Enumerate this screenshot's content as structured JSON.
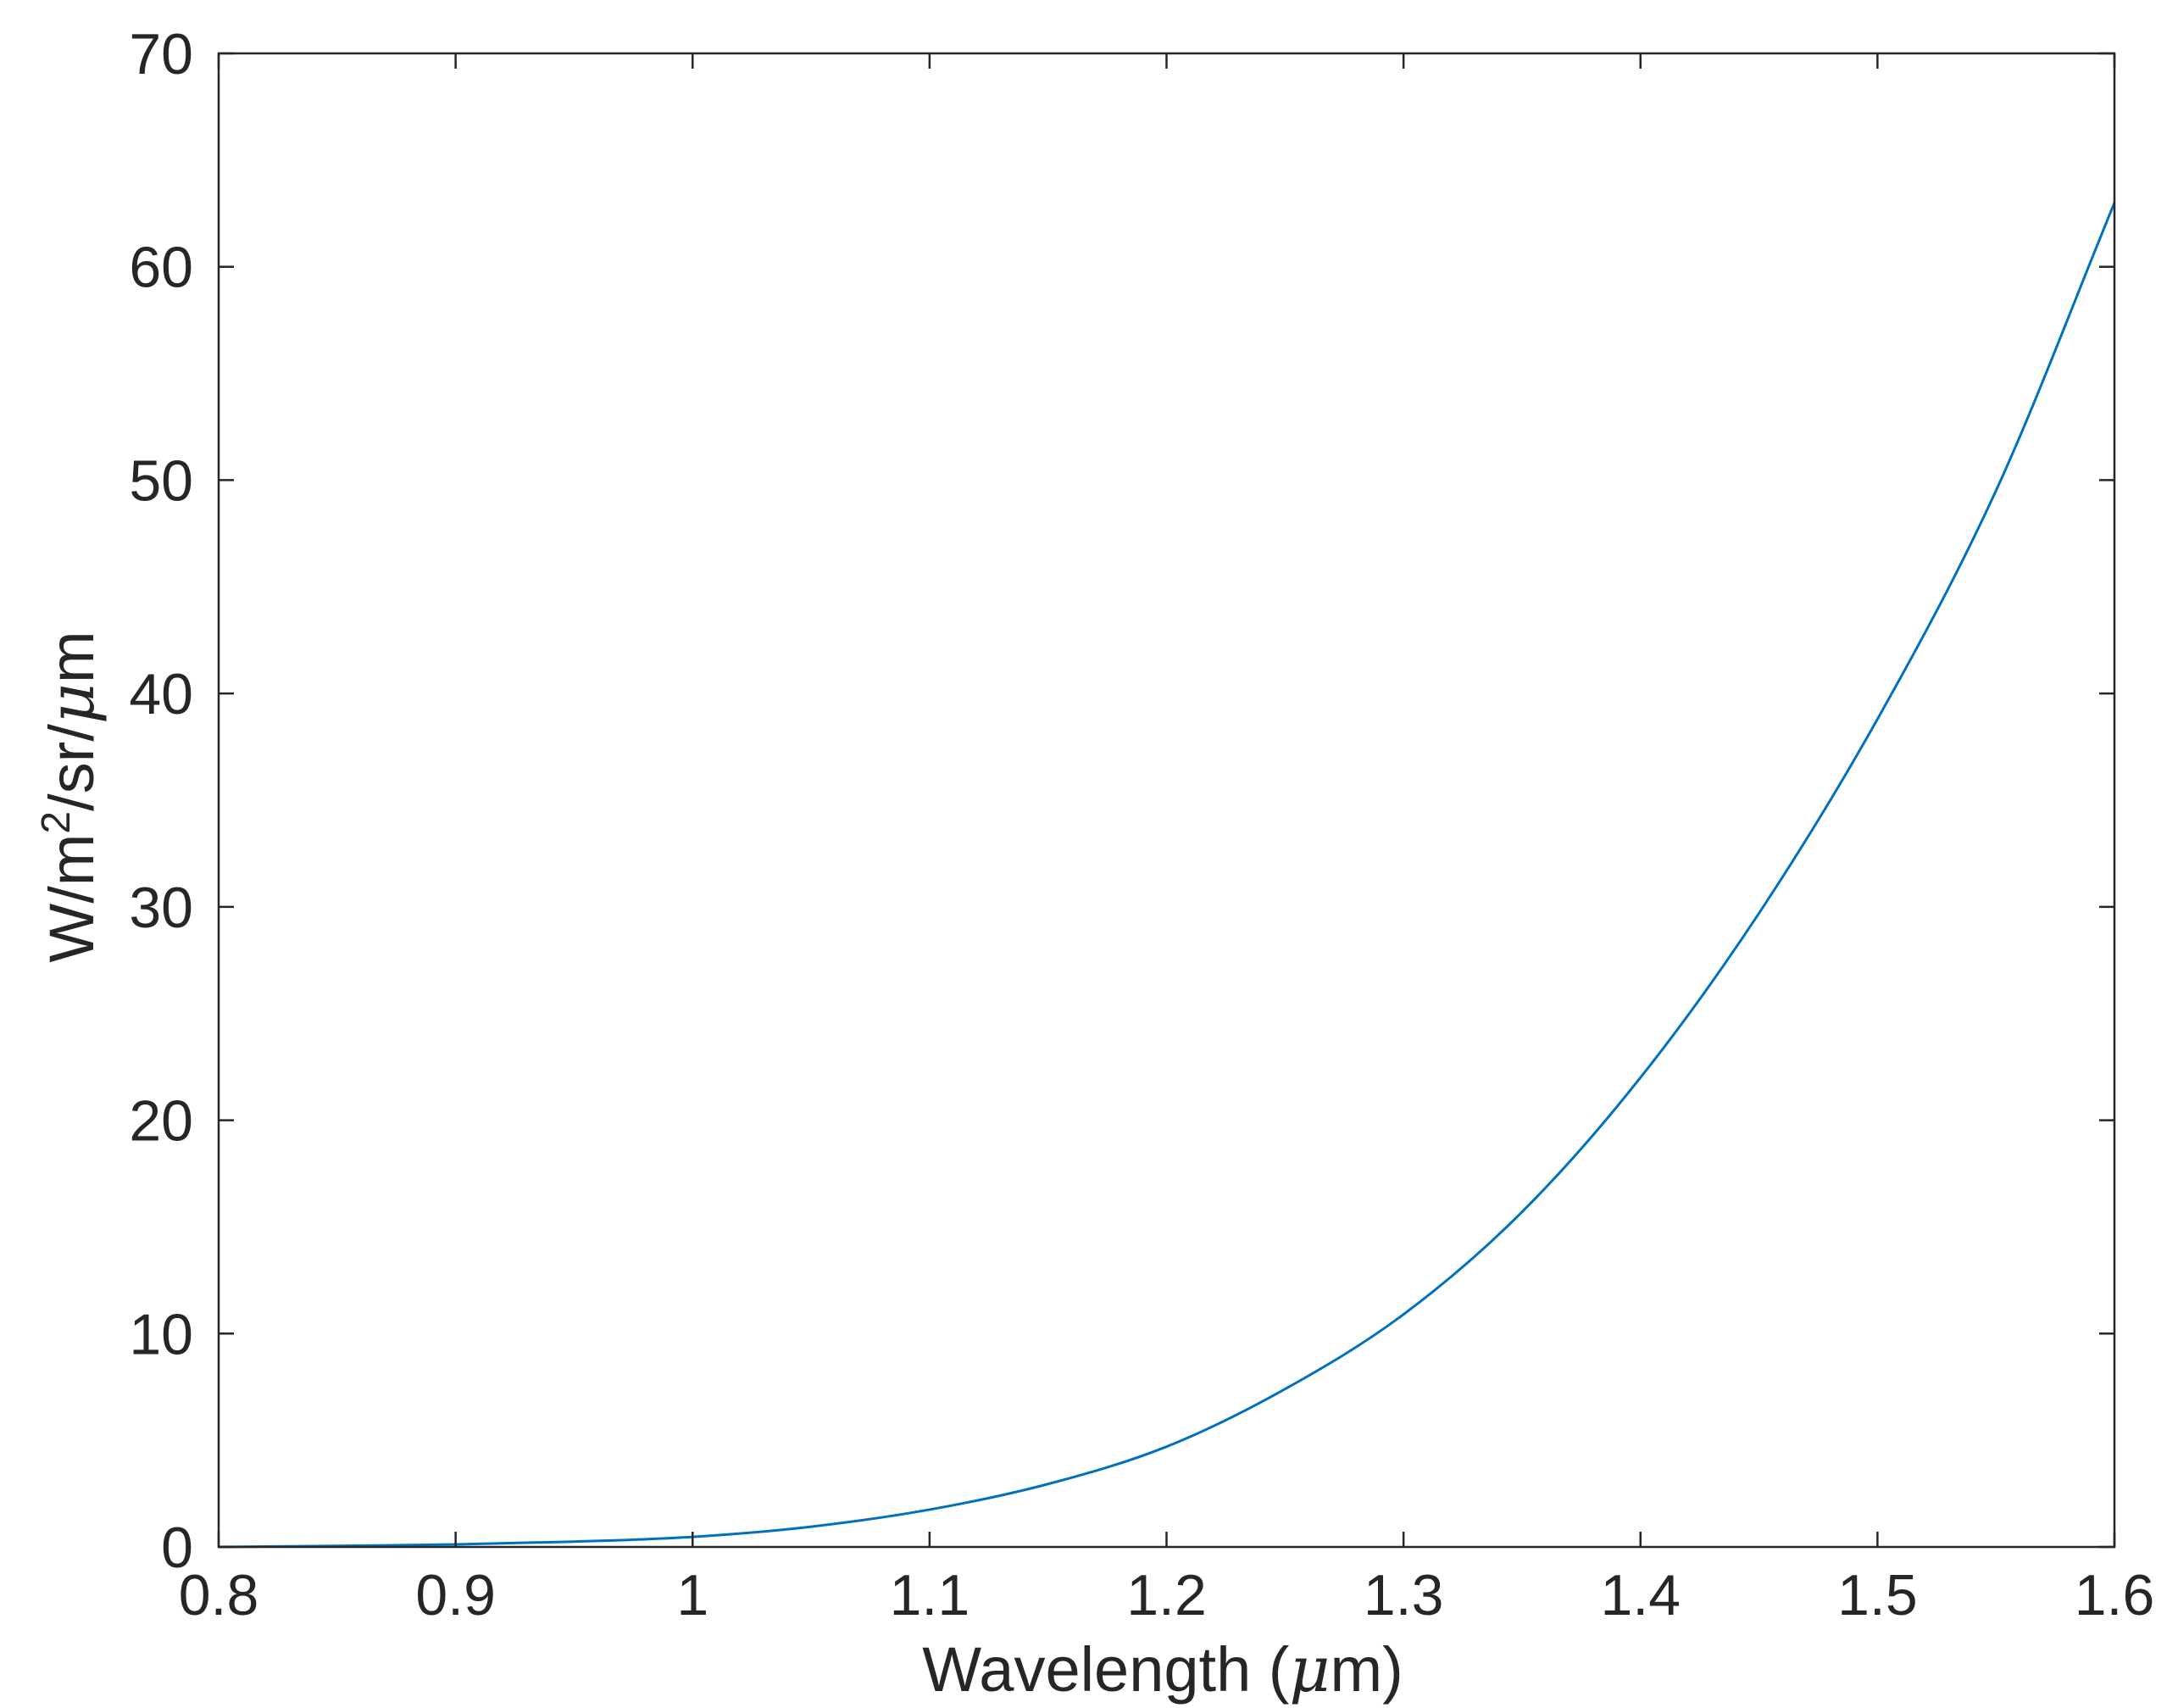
{
  "chart_data": {
    "type": "line",
    "title": "",
    "xlabel": {
      "before": "Wavelength (",
      "greek": "μ",
      "after": "m)"
    },
    "ylabel": {
      "part1": "W/m",
      "sup": "2",
      "part2": "/sr/",
      "greek": "μ",
      "part3": "m"
    },
    "xlim": [
      0.8,
      1.6
    ],
    "ylim": [
      0,
      70
    ],
    "xticks": [
      0.8,
      0.9,
      1.0,
      1.1,
      1.2,
      1.3,
      1.4,
      1.5,
      1.6
    ],
    "xtick_labels": [
      "0.8",
      "0.9",
      "1",
      "1.1",
      "1.2",
      "1.3",
      "1.4",
      "1.5",
      "1.6"
    ],
    "yticks": [
      0,
      10,
      20,
      30,
      40,
      50,
      60,
      70
    ],
    "ytick_labels": [
      "0",
      "10",
      "20",
      "30",
      "40",
      "50",
      "60",
      "70"
    ],
    "grid": false,
    "legend": "none",
    "colors": {
      "line": "#0072BD",
      "axes": "#262626"
    },
    "series": [
      {
        "x": [
          0.8,
          0.85,
          0.9,
          0.95,
          1.0,
          1.05,
          1.1,
          1.15,
          1.2,
          1.25,
          1.3,
          1.35,
          1.4,
          1.45,
          1.5,
          1.55,
          1.6
        ],
        "y": [
          0.0,
          0.05,
          0.12,
          0.25,
          0.47,
          0.95,
          1.75,
          2.95,
          4.7,
          7.4,
          10.9,
          15.7,
          22.0,
          29.7,
          38.8,
          49.5,
          63.0
        ]
      }
    ]
  }
}
